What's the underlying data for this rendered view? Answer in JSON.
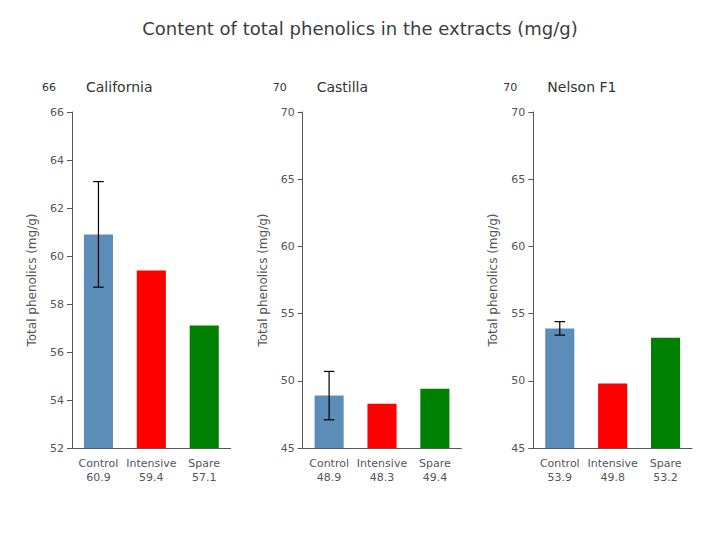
{
  "chart_data": [
    {
      "type": "bar",
      "title": "Content of total phenolics in the extracts (mg/g)",
      "subtitle": "California",
      "annotations": [
        "66"
      ],
      "categories": [
        "Control",
        "Intensive",
        "Spare"
      ],
      "values": [
        60.9,
        59.4,
        57.1
      ],
      "errors": [
        2.2,
        null,
        null
      ],
      "colors": [
        "#5b8db8",
        "#ff0000",
        "#008000"
      ],
      "ylabel": "Total phenolics (mg/g)",
      "ylim": [
        52,
        66
      ],
      "yticks": [
        52,
        54,
        56,
        58,
        60,
        62,
        64,
        66
      ],
      "grid": false,
      "data_labels": true
    },
    {
      "type": "bar",
      "subtitle": "Castilla",
      "annotations": [
        "70"
      ],
      "categories": [
        "Control",
        "Intensive",
        "Spare"
      ],
      "values": [
        48.9,
        48.3,
        49.4
      ],
      "errors": [
        1.8,
        null,
        null
      ],
      "colors": [
        "#5b8db8",
        "#ff0000",
        "#008000"
      ],
      "ylabel": "Total phenolics (mg/g)",
      "ylim": [
        45,
        70
      ],
      "yticks": [
        45,
        50,
        55,
        60,
        65,
        70
      ],
      "grid": false,
      "data_labels": true
    },
    {
      "type": "bar",
      "subtitle": "Nelson F1",
      "annotations": [
        "70"
      ],
      "categories": [
        "Control",
        "Intensive",
        "Spare"
      ],
      "values": [
        53.9,
        49.8,
        53.2
      ],
      "errors": [
        0.5,
        null,
        null
      ],
      "colors": [
        "#5b8db8",
        "#ff0000",
        "#008000"
      ],
      "ylabel": "Total phenolics (mg/g)",
      "ylim": [
        45,
        70
      ],
      "yticks": [
        45,
        50,
        55,
        60,
        65,
        70
      ],
      "grid": false,
      "data_labels": true
    }
  ]
}
